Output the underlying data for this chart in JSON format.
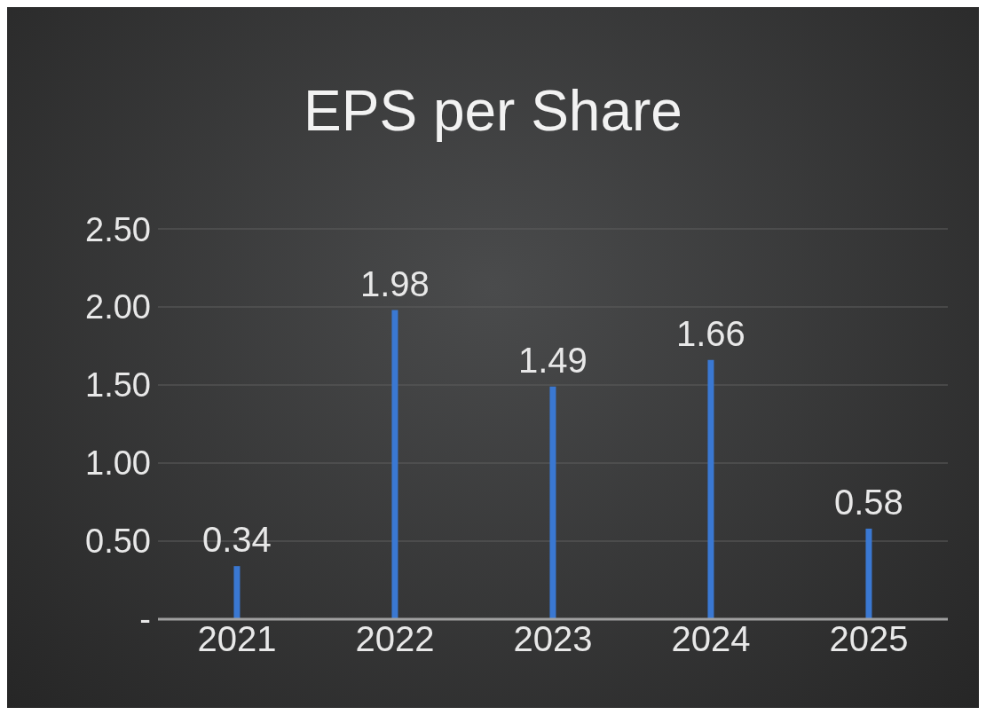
{
  "chart_data": {
    "type": "bar",
    "title": "EPS per Share",
    "categories": [
      "2021",
      "2022",
      "2023",
      "2024",
      "2025"
    ],
    "values": [
      0.34,
      1.98,
      1.49,
      1.66,
      0.58
    ],
    "color": "#3a78d2",
    "ylim": [
      0,
      2.5
    ],
    "yticks": [
      {
        "value": 0,
        "label": "-"
      },
      {
        "value": 0.5,
        "label": "0.50"
      },
      {
        "value": 1,
        "label": "1.00"
      },
      {
        "value": 1.5,
        "label": "1.50"
      },
      {
        "value": 2,
        "label": "2.00"
      },
      {
        "value": 2.5,
        "label": "2.50"
      }
    ],
    "grid": "y",
    "data_labels": true
  }
}
